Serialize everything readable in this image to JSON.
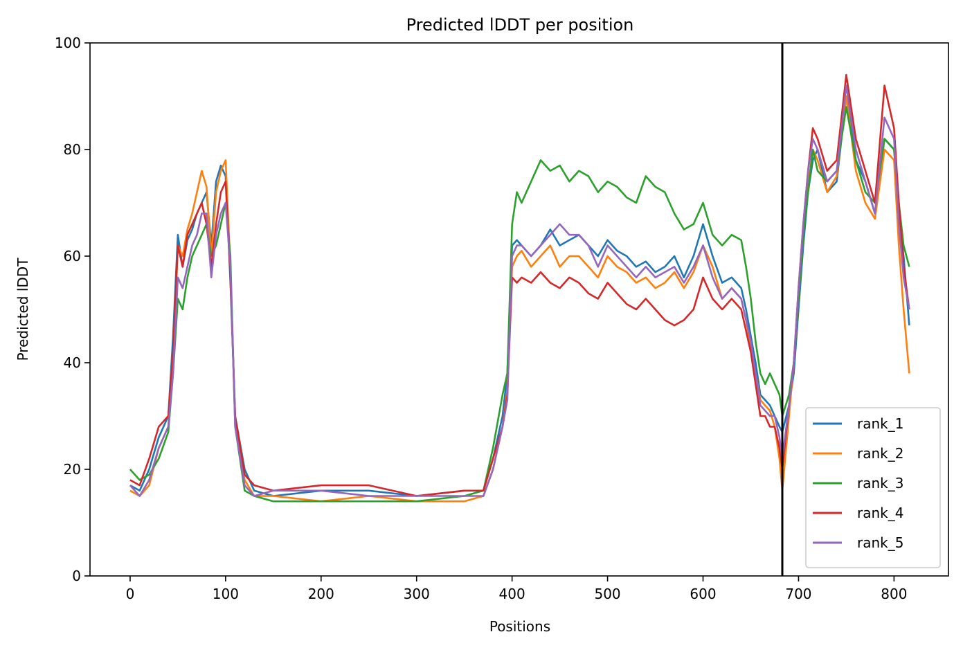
{
  "chart_data": {
    "type": "line",
    "title": "Predicted lDDT per position",
    "xlabel": "Positions",
    "ylabel": "Predicted lDDT",
    "xlim": [
      -42,
      857
    ],
    "ylim": [
      0,
      100
    ],
    "xticks": [
      0,
      100,
      200,
      300,
      400,
      500,
      600,
      700,
      800
    ],
    "yticks": [
      0,
      20,
      40,
      60,
      80,
      100
    ],
    "grid": false,
    "legend_position": "lower-right",
    "vertical_line": {
      "x": 683,
      "color": "#000000"
    },
    "series": [
      {
        "name": "rank_1",
        "color": "#1f77b4",
        "x": [
          0,
          10,
          20,
          30,
          40,
          45,
          50,
          55,
          60,
          65,
          70,
          75,
          80,
          85,
          90,
          95,
          100,
          105,
          110,
          120,
          130,
          150,
          200,
          250,
          300,
          350,
          370,
          380,
          390,
          395,
          400,
          405,
          410,
          420,
          430,
          440,
          450,
          460,
          470,
          480,
          490,
          500,
          510,
          520,
          530,
          540,
          550,
          560,
          570,
          580,
          590,
          600,
          610,
          620,
          630,
          640,
          645,
          650,
          655,
          660,
          665,
          670,
          675,
          680,
          683,
          690,
          695,
          700,
          705,
          710,
          715,
          720,
          730,
          740,
          750,
          760,
          770,
          780,
          790,
          800,
          805,
          810,
          816
        ],
        "y": [
          17,
          16,
          20,
          26,
          30,
          45,
          64,
          58,
          63,
          65,
          68,
          70,
          72,
          62,
          74,
          77,
          75,
          55,
          30,
          20,
          16,
          15,
          16,
          16,
          15,
          16,
          16,
          22,
          30,
          38,
          62,
          63,
          62,
          60,
          62,
          65,
          62,
          63,
          64,
          62,
          60,
          63,
          61,
          60,
          58,
          59,
          57,
          58,
          60,
          56,
          60,
          66,
          60,
          55,
          56,
          54,
          50,
          45,
          40,
          34,
          33,
          32,
          30,
          28,
          27,
          32,
          38,
          50,
          62,
          72,
          78,
          80,
          72,
          74,
          90,
          78,
          74,
          68,
          82,
          80,
          68,
          60,
          47
        ]
      },
      {
        "name": "rank_2",
        "color": "#ff7f0e",
        "x": [
          0,
          10,
          20,
          30,
          40,
          45,
          50,
          55,
          60,
          65,
          70,
          75,
          80,
          85,
          90,
          95,
          100,
          105,
          110,
          120,
          130,
          150,
          200,
          250,
          300,
          350,
          370,
          380,
          390,
          395,
          400,
          405,
          410,
          420,
          430,
          440,
          450,
          460,
          470,
          480,
          490,
          500,
          510,
          520,
          530,
          540,
          550,
          560,
          570,
          580,
          590,
          600,
          610,
          620,
          630,
          640,
          645,
          650,
          655,
          660,
          665,
          670,
          675,
          680,
          683,
          690,
          695,
          700,
          705,
          710,
          715,
          720,
          730,
          740,
          750,
          760,
          770,
          780,
          790,
          800,
          805,
          810,
          816
        ],
        "y": [
          16,
          15,
          17,
          24,
          28,
          40,
          62,
          60,
          65,
          68,
          72,
          76,
          73,
          60,
          72,
          76,
          78,
          58,
          28,
          18,
          15,
          15,
          14,
          15,
          14,
          14,
          15,
          20,
          28,
          35,
          58,
          60,
          61,
          58,
          60,
          62,
          58,
          60,
          60,
          58,
          56,
          60,
          58,
          57,
          55,
          56,
          54,
          55,
          57,
          54,
          57,
          62,
          58,
          52,
          54,
          52,
          48,
          43,
          38,
          33,
          32,
          31,
          28,
          22,
          16,
          30,
          40,
          52,
          64,
          73,
          80,
          78,
          72,
          75,
          90,
          76,
          70,
          67,
          80,
          78,
          62,
          50,
          38
        ]
      },
      {
        "name": "rank_3",
        "color": "#2ca02c",
        "x": [
          0,
          10,
          20,
          30,
          40,
          45,
          50,
          55,
          60,
          65,
          70,
          75,
          80,
          85,
          90,
          95,
          100,
          105,
          110,
          120,
          130,
          150,
          200,
          250,
          300,
          350,
          370,
          380,
          390,
          395,
          400,
          405,
          410,
          420,
          430,
          440,
          450,
          460,
          470,
          480,
          490,
          500,
          510,
          520,
          530,
          540,
          550,
          560,
          570,
          580,
          590,
          600,
          610,
          620,
          630,
          640,
          645,
          650,
          655,
          660,
          665,
          670,
          675,
          680,
          683,
          690,
          695,
          700,
          705,
          710,
          715,
          720,
          730,
          740,
          750,
          760,
          770,
          780,
          790,
          800,
          805,
          810,
          816
        ],
        "y": [
          20,
          18,
          19,
          22,
          27,
          38,
          52,
          50,
          56,
          60,
          62,
          64,
          66,
          60,
          62,
          66,
          70,
          60,
          28,
          16,
          15,
          14,
          14,
          14,
          14,
          15,
          16,
          24,
          34,
          38,
          66,
          72,
          70,
          74,
          78,
          76,
          77,
          74,
          76,
          75,
          72,
          74,
          73,
          71,
          70,
          75,
          73,
          72,
          68,
          65,
          66,
          70,
          64,
          62,
          64,
          63,
          58,
          52,
          44,
          38,
          36,
          38,
          36,
          34,
          30,
          34,
          40,
          52,
          64,
          72,
          80,
          76,
          74,
          76,
          88,
          78,
          72,
          70,
          82,
          80,
          70,
          62,
          58
        ]
      },
      {
        "name": "rank_4",
        "color": "#d62728",
        "x": [
          0,
          10,
          20,
          30,
          40,
          45,
          50,
          55,
          60,
          65,
          70,
          75,
          80,
          85,
          90,
          95,
          100,
          105,
          110,
          120,
          130,
          150,
          200,
          250,
          300,
          350,
          370,
          380,
          390,
          395,
          400,
          405,
          410,
          420,
          430,
          440,
          450,
          460,
          470,
          480,
          490,
          500,
          510,
          520,
          530,
          540,
          550,
          560,
          570,
          580,
          590,
          600,
          610,
          620,
          630,
          640,
          645,
          650,
          655,
          660,
          665,
          670,
          675,
          680,
          683,
          690,
          695,
          700,
          705,
          710,
          715,
          720,
          730,
          740,
          750,
          760,
          770,
          780,
          790,
          800,
          805,
          810,
          816
        ],
        "y": [
          18,
          17,
          22,
          28,
          30,
          42,
          62,
          58,
          64,
          66,
          68,
          70,
          66,
          58,
          66,
          72,
          74,
          56,
          30,
          19,
          17,
          16,
          17,
          17,
          15,
          16,
          16,
          22,
          28,
          34,
          56,
          55,
          56,
          55,
          57,
          55,
          54,
          56,
          55,
          53,
          52,
          55,
          53,
          51,
          50,
          52,
          50,
          48,
          47,
          48,
          50,
          56,
          52,
          50,
          52,
          50,
          46,
          42,
          36,
          30,
          30,
          28,
          28,
          24,
          20,
          32,
          40,
          54,
          66,
          76,
          84,
          82,
          76,
          78,
          94,
          82,
          76,
          70,
          92,
          84,
          70,
          58,
          50
        ]
      },
      {
        "name": "rank_5",
        "color": "#9467bd",
        "x": [
          0,
          10,
          20,
          30,
          40,
          45,
          50,
          55,
          60,
          65,
          70,
          75,
          80,
          85,
          90,
          95,
          100,
          105,
          110,
          120,
          130,
          150,
          200,
          250,
          300,
          350,
          370,
          380,
          390,
          395,
          400,
          405,
          410,
          420,
          430,
          440,
          450,
          460,
          470,
          480,
          490,
          500,
          510,
          520,
          530,
          540,
          550,
          560,
          570,
          580,
          590,
          600,
          610,
          620,
          630,
          640,
          645,
          650,
          655,
          660,
          665,
          670,
          675,
          680,
          683,
          690,
          695,
          700,
          705,
          710,
          715,
          720,
          730,
          740,
          750,
          760,
          770,
          780,
          790,
          800,
          805,
          810,
          816
        ],
        "y": [
          17,
          15,
          18,
          24,
          28,
          38,
          56,
          54,
          58,
          62,
          64,
          68,
          68,
          56,
          64,
          68,
          70,
          58,
          28,
          17,
          15,
          16,
          16,
          15,
          15,
          15,
          15,
          20,
          28,
          33,
          60,
          62,
          62,
          60,
          62,
          64,
          66,
          64,
          64,
          62,
          58,
          62,
          60,
          58,
          56,
          58,
          56,
          57,
          58,
          55,
          58,
          62,
          56,
          52,
          54,
          52,
          48,
          44,
          38,
          32,
          31,
          30,
          30,
          26,
          22,
          32,
          40,
          54,
          66,
          76,
          82,
          80,
          74,
          76,
          92,
          80,
          74,
          68,
          86,
          82,
          66,
          56,
          50
        ]
      }
    ]
  }
}
